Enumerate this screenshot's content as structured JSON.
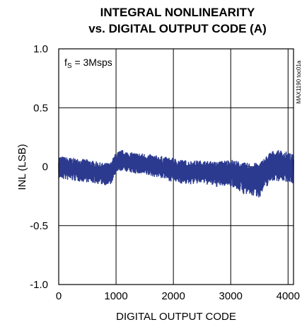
{
  "chart_data": {
    "type": "line",
    "title_line1": "INTEGRAL NONLINEARITY",
    "title_line2": "vs. DIGITAL OUTPUT CODE (A)",
    "xlabel": "DIGITAL OUTPUT CODE",
    "ylabel": "INL (LSB)",
    "xlim": [
      0,
      4095
    ],
    "ylim": [
      -1.0,
      1.0
    ],
    "x_ticks": [
      0,
      1000,
      2000,
      3000,
      4000
    ],
    "x_tick_labels": [
      "0",
      "1000",
      "2000",
      "3000",
      "4000"
    ],
    "y_ticks": [
      1.0,
      0.5,
      0,
      -0.5,
      -1.0
    ],
    "y_tick_labels": [
      "1.0",
      "0.5",
      "0",
      "-0.5",
      "-1.0"
    ],
    "grid": true,
    "annotation": {
      "symbol": "f",
      "subscript": "S",
      "text": " = 3Msps"
    },
    "part_id": "MAX1190 toc01a",
    "line_color": "#2b3a8f",
    "series": [
      {
        "x": [
          0,
          250,
          500,
          750,
          900,
          1000,
          1100,
          1250,
          1500,
          1750,
          2000,
          2250,
          2500,
          2750,
          3000,
          3250,
          3500,
          3700,
          3900,
          4095
        ],
        "center": [
          0.0,
          -0.01,
          -0.03,
          -0.05,
          -0.05,
          0.03,
          0.05,
          0.04,
          0.02,
          0.0,
          -0.02,
          -0.05,
          -0.03,
          -0.05,
          -0.03,
          -0.08,
          -0.08,
          0.02,
          0.0,
          -0.02
        ],
        "min": [
          -0.1,
          -0.12,
          -0.13,
          -0.15,
          -0.16,
          -0.06,
          -0.03,
          -0.05,
          -0.07,
          -0.09,
          -0.13,
          -0.15,
          -0.14,
          -0.17,
          -0.16,
          -0.24,
          -0.26,
          -0.12,
          -0.12,
          -0.14
        ],
        "max": [
          0.09,
          0.07,
          0.06,
          0.03,
          0.03,
          0.12,
          0.14,
          0.12,
          0.11,
          0.09,
          0.07,
          0.05,
          0.05,
          0.04,
          0.06,
          0.03,
          0.03,
          0.13,
          0.14,
          0.1
        ]
      }
    ]
  }
}
